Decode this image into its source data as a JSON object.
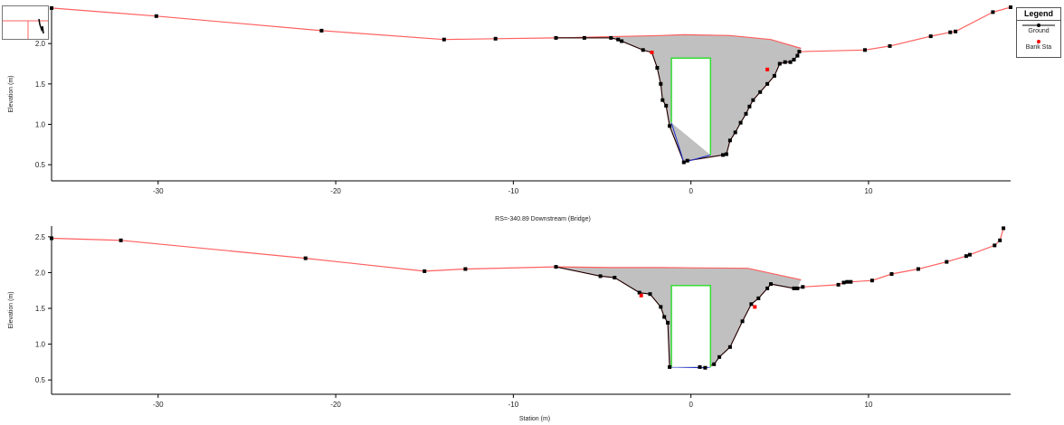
{
  "legend": {
    "title": "Legend",
    "items": [
      {
        "name": "Ground",
        "color": "#000000",
        "marker": "line-dot"
      },
      {
        "name": "Bank Sta",
        "color": "#ff0000",
        "marker": "dot"
      }
    ]
  },
  "colors": {
    "ground_fill": "#c0c0c0",
    "ground_line": "#000000",
    "levee_line": "#ff6060",
    "bridge_deck": "#33dd33",
    "culvert_invert": "#2233cc",
    "bank_sta": "#ff0000"
  },
  "chart_data": [
    {
      "type": "line",
      "title": "",
      "xlabel": "",
      "ylabel": "Elevation (m)",
      "xlim": [
        -36,
        18
      ],
      "ylim": [
        0.3,
        2.45
      ],
      "xticks": [
        -30,
        -20,
        -10,
        0,
        10
      ],
      "yticks": [
        0.5,
        1.0,
        1.5,
        2.0
      ],
      "grid": false,
      "legend": "right",
      "series": [
        {
          "name": "Ground",
          "x": [
            -36,
            -30.1,
            -20.8,
            -13.9,
            -11.0,
            -7.6,
            -6.0,
            -4.5,
            -4.1,
            -3.9,
            -2.7,
            -2.2,
            -1.9,
            -1.7,
            -1.6,
            -1.4,
            -1.2,
            -0.4,
            -0.2,
            1.8,
            2.0,
            2.2,
            2.5,
            2.8,
            3.1,
            3.3,
            3.5,
            3.9,
            4.3,
            4.7,
            5.0,
            5.3,
            5.6,
            5.8,
            6.0,
            6.1,
            9.8,
            11.2,
            13.5,
            14.6,
            14.9,
            17.0,
            18.0
          ],
          "y": [
            2.44,
            2.34,
            2.16,
            2.05,
            2.06,
            2.07,
            2.07,
            2.07,
            2.05,
            2.03,
            1.92,
            1.89,
            1.7,
            1.5,
            1.3,
            1.23,
            0.98,
            0.53,
            0.55,
            0.62,
            0.63,
            0.8,
            0.9,
            1.02,
            1.13,
            1.22,
            1.3,
            1.4,
            1.5,
            1.6,
            1.75,
            1.77,
            1.77,
            1.8,
            1.85,
            1.9,
            1.92,
            1.97,
            2.09,
            2.14,
            2.15,
            2.39,
            2.45
          ]
        },
        {
          "name": "Levee",
          "x": [
            -7.6,
            -1.7,
            -0.4,
            2.2,
            4.5,
            6.2
          ],
          "y": [
            2.07,
            2.1,
            2.11,
            2.1,
            2.05,
            1.94
          ]
        },
        {
          "name": "Bridge Deck",
          "x": [
            -1.1,
            -1.1,
            1.1,
            1.1
          ],
          "y": [
            1.02,
            1.82,
            1.82,
            0.62
          ]
        },
        {
          "name": "Culvert Invert",
          "x": [
            -1.1,
            -0.4,
            1.1
          ],
          "y": [
            1.02,
            0.53,
            0.62
          ]
        }
      ],
      "bank_sta": {
        "x": [
          -2.2,
          4.3
        ],
        "y": [
          1.89,
          1.68
        ]
      }
    },
    {
      "type": "line",
      "title": "RS=-340.89 Downstream  (Bridge)",
      "xlabel": "Station (m)",
      "ylabel": "Elevation (m)",
      "xlim": [
        -36,
        18
      ],
      "ylim": [
        0.3,
        2.65
      ],
      "xticks": [
        -30,
        -20,
        -10,
        0,
        10
      ],
      "yticks": [
        0.5,
        1.0,
        1.5,
        2.0,
        2.5
      ],
      "grid": false,
      "legend": "right",
      "series": [
        {
          "name": "Ground",
          "x": [
            -36,
            -32.1,
            -21.7,
            -15.0,
            -12.7,
            -7.6,
            -5.1,
            -4.3,
            -2.9,
            -2.3,
            -1.7,
            -1.5,
            -1.3,
            -1.2,
            0.5,
            0.8,
            1.3,
            1.6,
            2.2,
            2.9,
            3.4,
            3.8,
            4.3,
            4.5,
            5.8,
            6.0,
            6.3,
            8.3,
            8.6,
            8.8,
            9.0,
            10.2,
            11.3,
            12.8,
            14.4,
            15.5,
            15.7,
            17.1,
            17.4,
            17.6
          ],
          "y": [
            2.48,
            2.45,
            2.2,
            2.02,
            2.05,
            2.08,
            1.95,
            1.93,
            1.72,
            1.7,
            1.52,
            1.38,
            1.3,
            0.68,
            0.68,
            0.67,
            0.72,
            0.82,
            0.96,
            1.32,
            1.56,
            1.64,
            1.78,
            1.84,
            1.78,
            1.78,
            1.8,
            1.83,
            1.86,
            1.87,
            1.87,
            1.89,
            1.98,
            2.05,
            2.15,
            2.23,
            2.25,
            2.38,
            2.45,
            2.62
          ]
        },
        {
          "name": "Levee",
          "x": [
            -7.6,
            -4.5,
            -1.7,
            3.2,
            6.2
          ],
          "y": [
            2.08,
            2.07,
            2.07,
            2.06,
            1.9
          ]
        },
        {
          "name": "Bridge Deck",
          "x": [
            -1.1,
            -1.1,
            1.1,
            1.1
          ],
          "y": [
            0.68,
            1.82,
            1.82,
            0.68
          ]
        },
        {
          "name": "Culvert Invert",
          "x": [
            -1.1,
            0.8,
            1.1
          ],
          "y": [
            0.68,
            0.67,
            0.68
          ]
        }
      ],
      "bank_sta": {
        "x": [
          -2.8,
          3.6
        ],
        "y": [
          1.68,
          1.52
        ]
      }
    }
  ]
}
